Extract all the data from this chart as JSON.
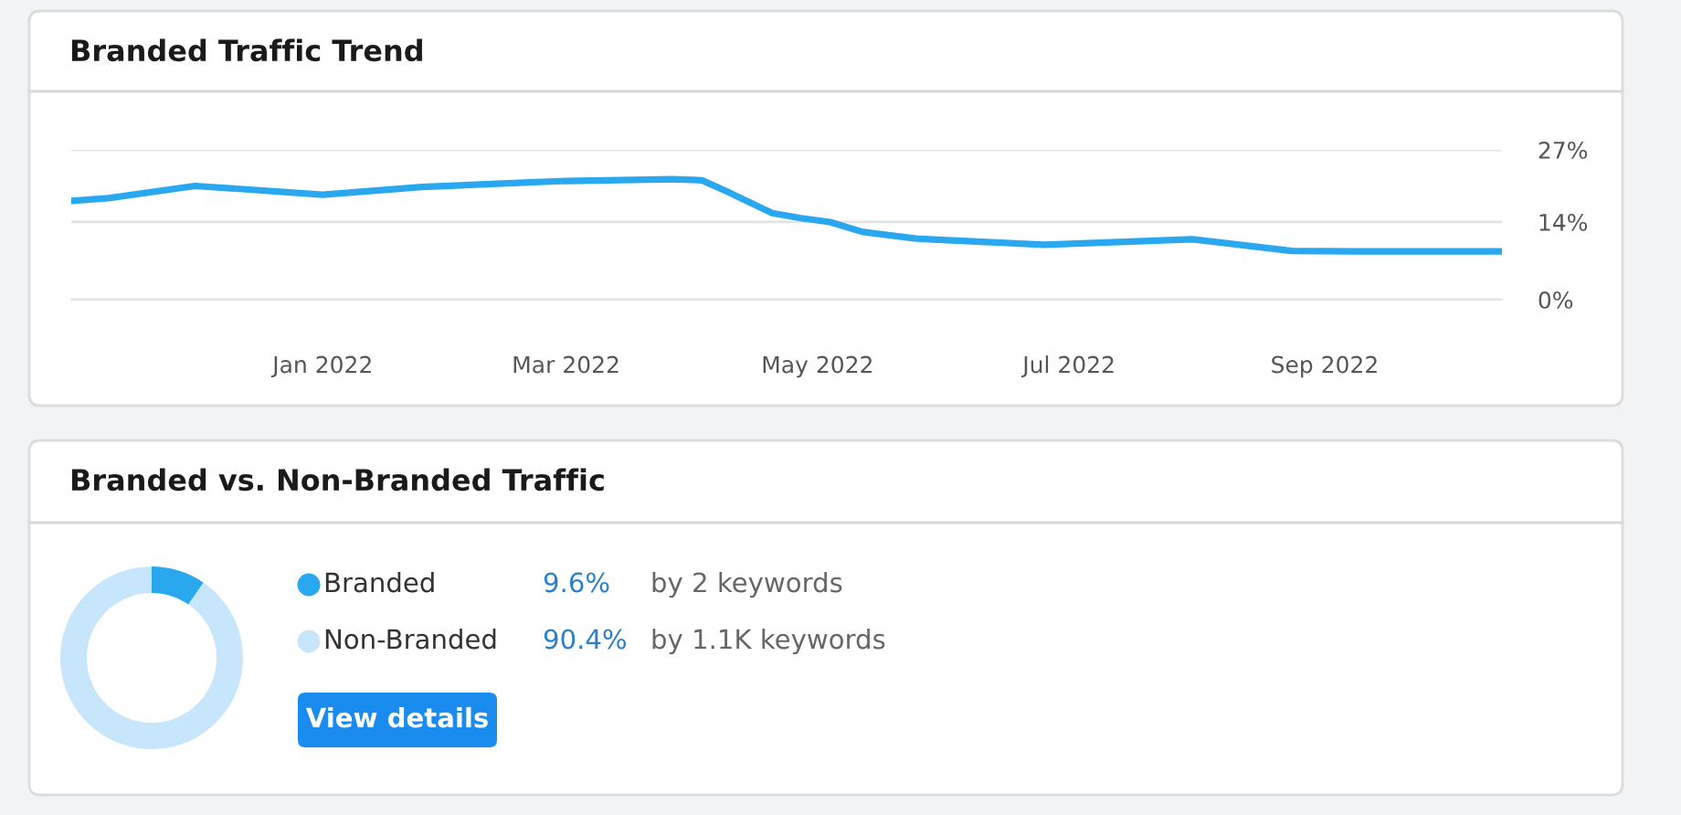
{
  "chart_data": [
    {
      "type": "line",
      "title": "Branded Traffic Trend",
      "x": [
        "2021-11-01",
        "2021-11-10",
        "2021-12-01",
        "2021-12-11",
        "2022-01-01",
        "2022-01-25",
        "2022-02-16",
        "2022-03-01",
        "2022-03-27",
        "2022-04-03",
        "2022-04-09",
        "2022-04-20",
        "2022-04-27",
        "2022-05-04",
        "2022-05-12",
        "2022-05-25",
        "2022-06-25",
        "2022-07-31",
        "2022-08-24",
        "2022-09-08",
        "2022-10-14"
      ],
      "series": [
        {
          "color": "#2aa8ef",
          "values": [
            17.8,
            18.3,
            20.5,
            20.0,
            18.9,
            20.3,
            21.0,
            21.4,
            21.7,
            21.5,
            19.5,
            15.6,
            14.7,
            14.0,
            12.2,
            11.0,
            9.9,
            10.9,
            8.8,
            8.7,
            8.7
          ]
        }
      ],
      "xlim": [
        "2021-11-01",
        "2022-10-14"
      ],
      "xticks": [
        {
          "value": "2022-01-01",
          "label": "Jan 2022"
        },
        {
          "value": "2022-03-01",
          "label": "Mar 2022"
        },
        {
          "value": "2022-05-01",
          "label": "May 2022"
        },
        {
          "value": "2022-07-01",
          "label": "Jul 2022"
        },
        {
          "value": "2022-09-01",
          "label": "Sep 2022"
        }
      ],
      "ylim": [
        0,
        27
      ],
      "yticks": [
        {
          "value": 0,
          "label": "0%"
        },
        {
          "value": 14,
          "label": "14%"
        },
        {
          "value": 27,
          "label": "27%"
        }
      ],
      "grid": "y",
      "marker": "none",
      "line_style": "solid",
      "legend": false
    },
    {
      "type": "donut",
      "title": "Branded vs. Non-Branded Traffic",
      "categories": [
        "Branded",
        "Non-Branded"
      ],
      "values": [
        9.6,
        90.4
      ],
      "colors": [
        "#2aa8ef",
        "#c8e6fb"
      ],
      "value_labels": [
        "9.6%",
        "90.4%"
      ],
      "annotations": [
        "by 2 keywords",
        "by 1.1K keywords",
        "View details"
      ],
      "legend": "right"
    }
  ]
}
